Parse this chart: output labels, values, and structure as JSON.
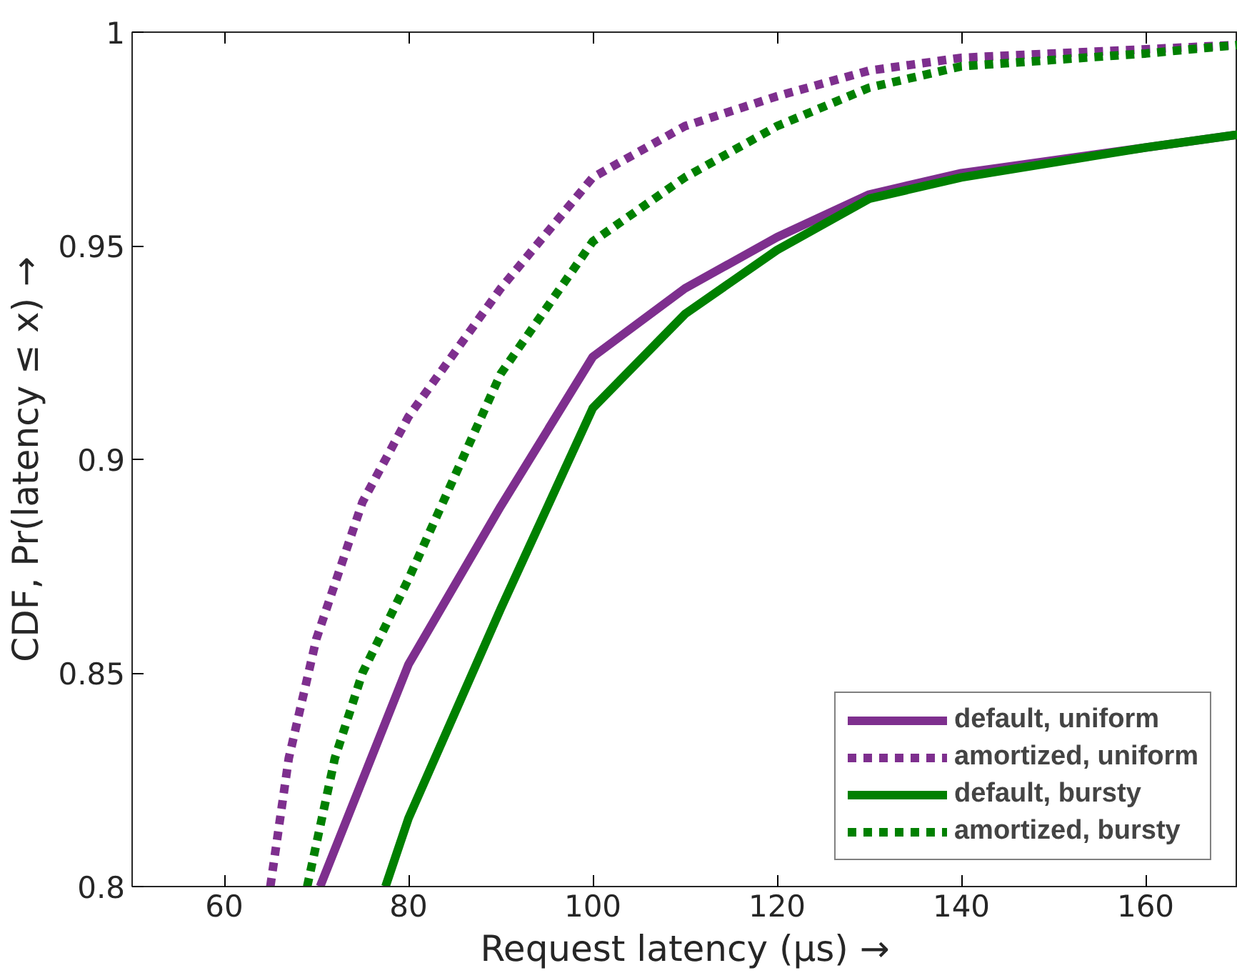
{
  "chart_data": {
    "type": "line",
    "xlabel": "Request latency (μs) →",
    "ylabel": "CDF, Pr(latency ≤ x) →",
    "xlim": [
      50,
      170
    ],
    "ylim": [
      0.8,
      1
    ],
    "xticks": [
      60,
      80,
      100,
      120,
      140,
      160
    ],
    "yticks": [
      0.8,
      0.85,
      0.9,
      0.95,
      1
    ],
    "grid": false,
    "legend": "bottom right",
    "series": [
      {
        "name": "default, uniform",
        "color": "#7e2f8e",
        "line_style": "solid",
        "x": [
          70.4,
          80,
          90,
          100,
          110,
          120,
          130,
          140,
          160,
          170
        ],
        "values": [
          0.8,
          0.852,
          0.889,
          0.924,
          0.94,
          0.952,
          0.962,
          0.967,
          0.973,
          0.976
        ]
      },
      {
        "name": "amortized, uniform",
        "color": "#7e2f8e",
        "line_style": "dotted",
        "x": [
          65,
          67,
          70,
          75,
          80,
          90,
          100,
          110,
          120,
          130,
          140,
          160,
          170
        ],
        "values": [
          0.8,
          0.83,
          0.858,
          0.89,
          0.91,
          0.94,
          0.966,
          0.978,
          0.985,
          0.991,
          0.994,
          0.996,
          0.997
        ]
      },
      {
        "name": "default, bursty",
        "color": "#008000",
        "line_style": "solid",
        "x": [
          77.5,
          80,
          90,
          100,
          110,
          120,
          130,
          140,
          160,
          170
        ],
        "values": [
          0.8,
          0.816,
          0.865,
          0.912,
          0.934,
          0.949,
          0.961,
          0.966,
          0.973,
          0.976
        ]
      },
      {
        "name": "amortized, bursty",
        "color": "#008000",
        "line_style": "dotted",
        "x": [
          69,
          72,
          75,
          80,
          90,
          100,
          110,
          120,
          130,
          140,
          160,
          170
        ],
        "values": [
          0.8,
          0.83,
          0.85,
          0.872,
          0.92,
          0.951,
          0.966,
          0.978,
          0.987,
          0.992,
          0.995,
          0.997
        ]
      }
    ]
  }
}
